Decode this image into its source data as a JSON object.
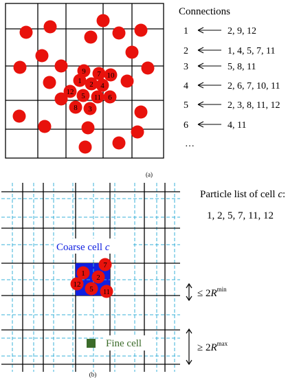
{
  "panel_a": {
    "caption": "(a)",
    "connections_title": "Connections",
    "labeled_particles": [
      "9",
      "7",
      "10",
      "1",
      "2",
      "4",
      "12",
      "5",
      "11",
      "6",
      "8",
      "3"
    ],
    "connections": [
      {
        "id": "1",
        "list": "2, 9, 12"
      },
      {
        "id": "2",
        "list": "1, 4, 5, 7, 11"
      },
      {
        "id": "3",
        "list": "5, 8, 11"
      },
      {
        "id": "4",
        "list": "2, 6, 7, 10, 11"
      },
      {
        "id": "5",
        "list": "2, 3, 8, 11, 12"
      },
      {
        "id": "6",
        "list": "4, 11"
      }
    ],
    "ellipsis": "…",
    "particle_color": "#e8120c"
  },
  "panel_b": {
    "caption": "(b)",
    "particle_list_title": "Particle list of cell ",
    "particle_list_cell": "c",
    "particle_list_title_end": ":",
    "particle_list": "1, 2, 5, 7, 11, 12",
    "coarse_cell_label": "Coarse cell ",
    "coarse_cell_var": "c",
    "fine_cell_label": "Fine cell",
    "labeled_particles": [
      "7",
      "1",
      "2",
      "12",
      "5",
      "11"
    ],
    "rmin_prefix": "≤ 2",
    "rmin_var": "R",
    "rmin_sup": "min",
    "rmax_prefix": "≥ 2",
    "rmax_var": "R",
    "rmax_sup": "max",
    "coarse_color": "#1020e0",
    "fine_color": "#3b6b2a",
    "fine_grid_color": "#3ab0d8"
  }
}
